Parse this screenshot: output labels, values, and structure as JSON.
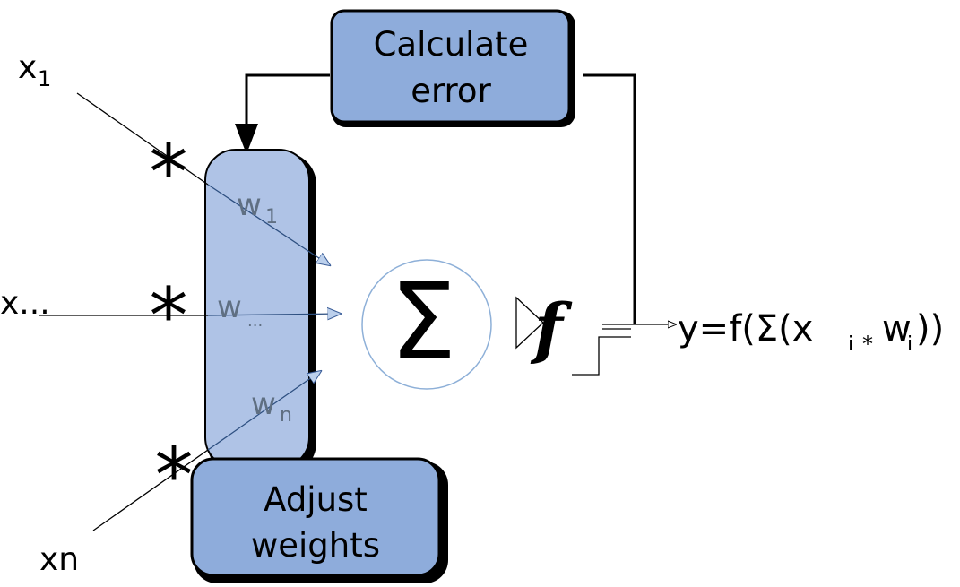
{
  "nodes": {
    "calculate_error": {
      "line1": "Calculate",
      "line2": "error"
    },
    "adjust_weights": {
      "line1": "Adjust",
      "line2": "weights"
    },
    "summation": {
      "symbol": "Σ"
    },
    "activation": {
      "symbol": "f"
    }
  },
  "inputs": {
    "x1": {
      "base": "x",
      "sub": "1"
    },
    "xdots": {
      "text": "x..."
    },
    "xn": {
      "text": "xn"
    }
  },
  "weights": {
    "w1": {
      "base": "w",
      "sub": "1"
    },
    "wdots": {
      "base": "w",
      "sub": "..."
    },
    "wn": {
      "base": "w",
      "sub": "n"
    }
  },
  "multiply_symbol": "*",
  "output": {
    "prefix": "y=f(Σ(x",
    "sub_i": "i",
    "mult": "*",
    "w": "w",
    "sub_i2": "i",
    "suffix": "))"
  },
  "colors": {
    "box_fill": "#8eacdb",
    "weights_bar_fill": "#afc3e6",
    "stroke": "#000000",
    "weight_label": "#5f6f82",
    "sum_circle": "#8eb0d8"
  }
}
